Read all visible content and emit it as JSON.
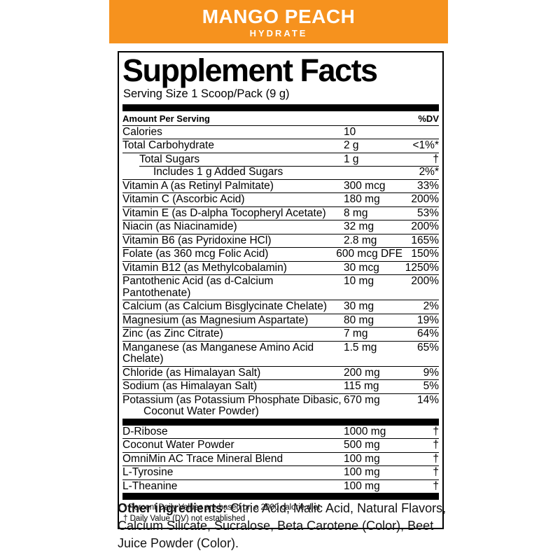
{
  "banner": {
    "title": "MANGO PEACH",
    "subtitle": "HYDRATE",
    "bg_color": "#F6921E"
  },
  "panel": {
    "title": "Supplement Facts",
    "serving_size": "Serving Size 1 Scoop/Pack (9 g)",
    "columns": {
      "amount_header": "Amount Per Serving",
      "dv_header": "%DV"
    },
    "sections": [
      {
        "rows": [
          {
            "name": "Calories",
            "amount": "10",
            "dv": ""
          },
          {
            "name": "Total Carbohydrate",
            "amount": "2 g",
            "dv": "<1%*"
          },
          {
            "name": "Total Sugars",
            "amount": "1 g",
            "dv": "†",
            "indent": 1
          },
          {
            "name": "Includes 1 g Added Sugars",
            "amount": "",
            "dv": "2%*",
            "indent": 2,
            "rule_indent": true
          },
          {
            "name": "Vitamin A (as Retinyl Palmitate)",
            "amount": "300 mcg",
            "dv": "33%"
          },
          {
            "name": "Vitamin C (Ascorbic Acid)",
            "amount": "180 mg",
            "dv": "200%"
          },
          {
            "name": "Vitamin E (as D-alpha Tocopheryl Acetate)",
            "amount": "8 mg",
            "dv": "53%"
          },
          {
            "name": "Niacin (as Niacinamide)",
            "amount": "32 mg",
            "dv": "200%"
          },
          {
            "name": "Vitamin B6 (as Pyridoxine HCl)",
            "amount": "2.8 mg",
            "dv": "165%"
          },
          {
            "name": "Folate (as 360 mcg Folic Acid)",
            "amount": "600 mcg DFE",
            "dv": "150%"
          },
          {
            "name": "Vitamin B12 (as Methylcobalamin)",
            "amount": "30 mcg",
            "dv": "1250%"
          },
          {
            "name": "Pantothenic Acid (as d-Calcium Pantothenate)",
            "amount": "10 mg",
            "dv": "200%"
          },
          {
            "name": "Calcium (as Calcium Bisglycinate Chelate)",
            "amount": "30 mg",
            "dv": "2%"
          },
          {
            "name": "Magnesium (as Magnesium Aspartate)",
            "amount": "80 mg",
            "dv": "19%"
          },
          {
            "name": "Zinc (as Zinc Citrate)",
            "amount": "7 mg",
            "dv": "64%"
          },
          {
            "name": "Manganese (as Manganese Amino Acid Chelate)",
            "amount": "1.5 mg",
            "dv": "65%"
          },
          {
            "name": "Chloride (as Himalayan Salt)",
            "amount": "200 mg",
            "dv": "9%"
          },
          {
            "name": "Sodium (as Himalayan Salt)",
            "amount": "115 mg",
            "dv": "5%"
          },
          {
            "name": "Potassium (as Potassium Phosphate Dibasic,",
            "name_line2": "Coconut Water Powder)",
            "amount": "670 mg",
            "dv": "14%"
          }
        ]
      },
      {
        "rows": [
          {
            "name": "D-Ribose",
            "amount": "1000 mg",
            "dv": "†"
          },
          {
            "name": "Coconut Water Powder",
            "amount": "500 mg",
            "dv": "†"
          },
          {
            "name": "OmniMin AC Trace Mineral Blend",
            "amount": "100 mg",
            "dv": "†"
          },
          {
            "name": "L-Tyrosine",
            "amount": "100 mg",
            "dv": "†"
          },
          {
            "name": "L-Theanine",
            "amount": "100 mg",
            "dv": "†"
          }
        ]
      }
    ],
    "footnotes": [
      "* Percent Daily Values are based on a 2000 calorie diet",
      "† Daily Value (DV) not established"
    ]
  },
  "other_ingredients": {
    "label": "Other ingredients:",
    "text": " Citric Acid, Malic Acid, Natural Flavors, Calcium Silicate, Sucralose, Beta Carotene (Color), Beet Juice Powder (Color)."
  }
}
